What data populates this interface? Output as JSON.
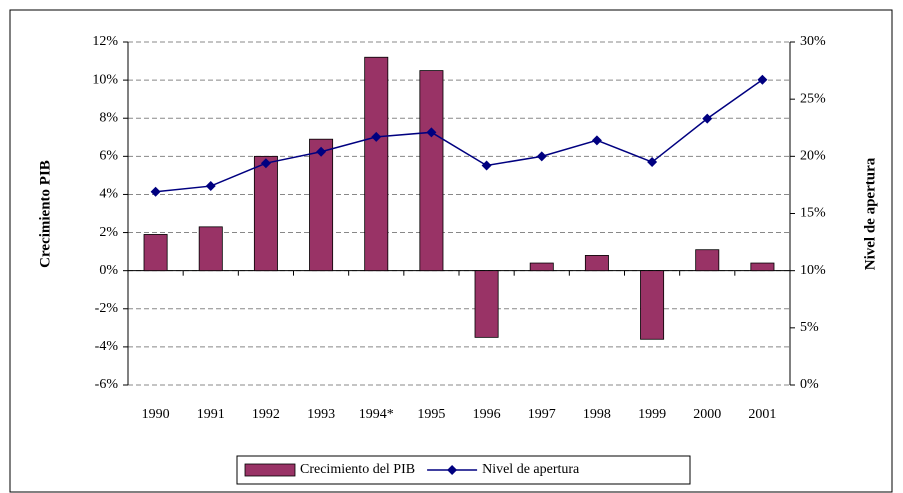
{
  "chart_data": {
    "type": "bar",
    "categories": [
      "1990",
      "1991",
      "1992",
      "1993",
      "1994*",
      "1995",
      "1996",
      "1997",
      "1998",
      "1999",
      "2000",
      "2001"
    ],
    "series": [
      {
        "name": "Crecimiento del PIB",
        "type": "bar",
        "color": "#993366",
        "values": [
          1.9,
          2.3,
          6.0,
          6.9,
          11.2,
          10.5,
          -3.5,
          0.4,
          0.8,
          -3.6,
          1.1,
          0.4
        ]
      },
      {
        "name": "Nivel de apertura",
        "type": "line",
        "axis": "y2",
        "color": "#000080",
        "values": [
          16.9,
          17.4,
          19.4,
          20.4,
          21.7,
          22.1,
          19.2,
          20.0,
          21.4,
          19.5,
          23.3,
          26.7
        ]
      }
    ],
    "y_label": "Crecimiento PIB",
    "y2_label": "Nivel de apertura",
    "ylim": [
      -6,
      12
    ],
    "yticks": [
      {
        "value": -6,
        "label": "-6%"
      },
      {
        "value": -4,
        "label": "-4%"
      },
      {
        "value": -2,
        "label": "-2%"
      },
      {
        "value": 0,
        "label": "0%"
      },
      {
        "value": 2,
        "label": "2%"
      },
      {
        "value": 4,
        "label": "4%"
      },
      {
        "value": 6,
        "label": "6%"
      },
      {
        "value": 8,
        "label": "8%"
      },
      {
        "value": 10,
        "label": "10%"
      },
      {
        "value": 12,
        "label": "12%"
      }
    ],
    "y2lim": [
      0,
      30
    ],
    "y2ticks": [
      {
        "value": 0,
        "label": "0%"
      },
      {
        "value": 5,
        "label": "5%"
      },
      {
        "value": 10,
        "label": "10%"
      },
      {
        "value": 15,
        "label": "15%"
      },
      {
        "value": 20,
        "label": "20%"
      },
      {
        "value": 25,
        "label": "25%"
      },
      {
        "value": 30,
        "label": "30%"
      }
    ],
    "grid": true,
    "legend": "bottom"
  }
}
